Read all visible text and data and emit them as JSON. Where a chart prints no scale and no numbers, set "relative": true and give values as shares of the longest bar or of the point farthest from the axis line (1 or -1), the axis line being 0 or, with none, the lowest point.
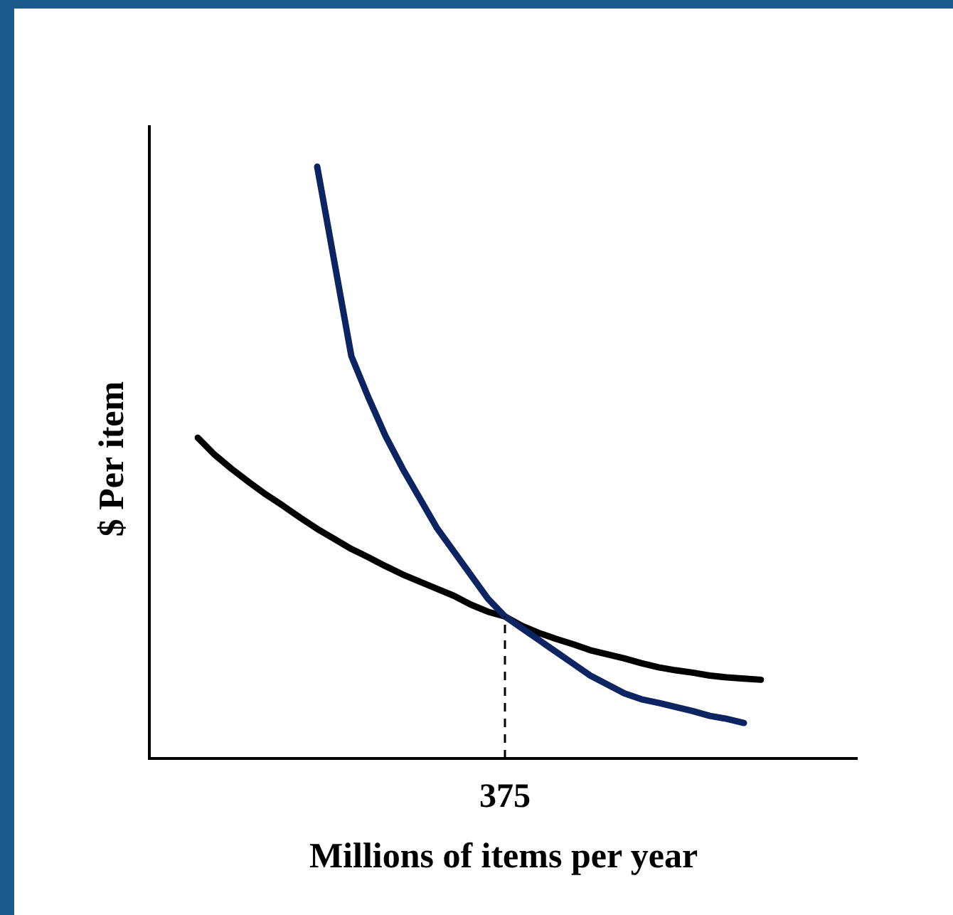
{
  "chart_data": {
    "type": "line",
    "xlabel": "Millions of items per year",
    "ylabel": "$ Per item",
    "relative": true,
    "grid": false,
    "legend": false,
    "marker": "none",
    "line_style": "solid",
    "categories": [
      null,
      null,
      null,
      null,
      null,
      null,
      null,
      null,
      null,
      null,
      null,
      null,
      null,
      null,
      null,
      null,
      null,
      null,
      null,
      null,
      null,
      null,
      null,
      null,
      null,
      null,
      null,
      null,
      null,
      null,
      null,
      null,
      null,
      null
    ],
    "series": [
      {
        "color": "#0d2462",
        "values": [
          null,
          null,
          null,
          null,
          null,
          null,
          null,
          1,
          0.84,
          0.68,
          0.61,
          0.545,
          0.49,
          0.44,
          0.39,
          0.35,
          0.31,
          0.27,
          0.24,
          0.22,
          0.2,
          0.18,
          0.16,
          0.14,
          0.125,
          0.11,
          0.1,
          0.094,
          0.087,
          0.08,
          0.072,
          0.067,
          0.06,
          null
        ]
      },
      {
        "color": "#000000",
        "values": [
          0.542,
          0.513,
          0.489,
          0.467,
          0.446,
          0.427,
          0.407,
          0.388,
          0.371,
          0.354,
          0.34,
          0.325,
          0.311,
          0.299,
          0.287,
          0.275,
          0.26,
          0.248,
          0.24,
          0.224,
          0.212,
          0.202,
          0.193,
          0.183,
          0.176,
          0.169,
          0.161,
          0.154,
          0.149,
          0.145,
          0.14,
          0.137,
          0.135,
          0.133
        ]
      }
    ],
    "annotations": [
      "375"
    ]
  }
}
